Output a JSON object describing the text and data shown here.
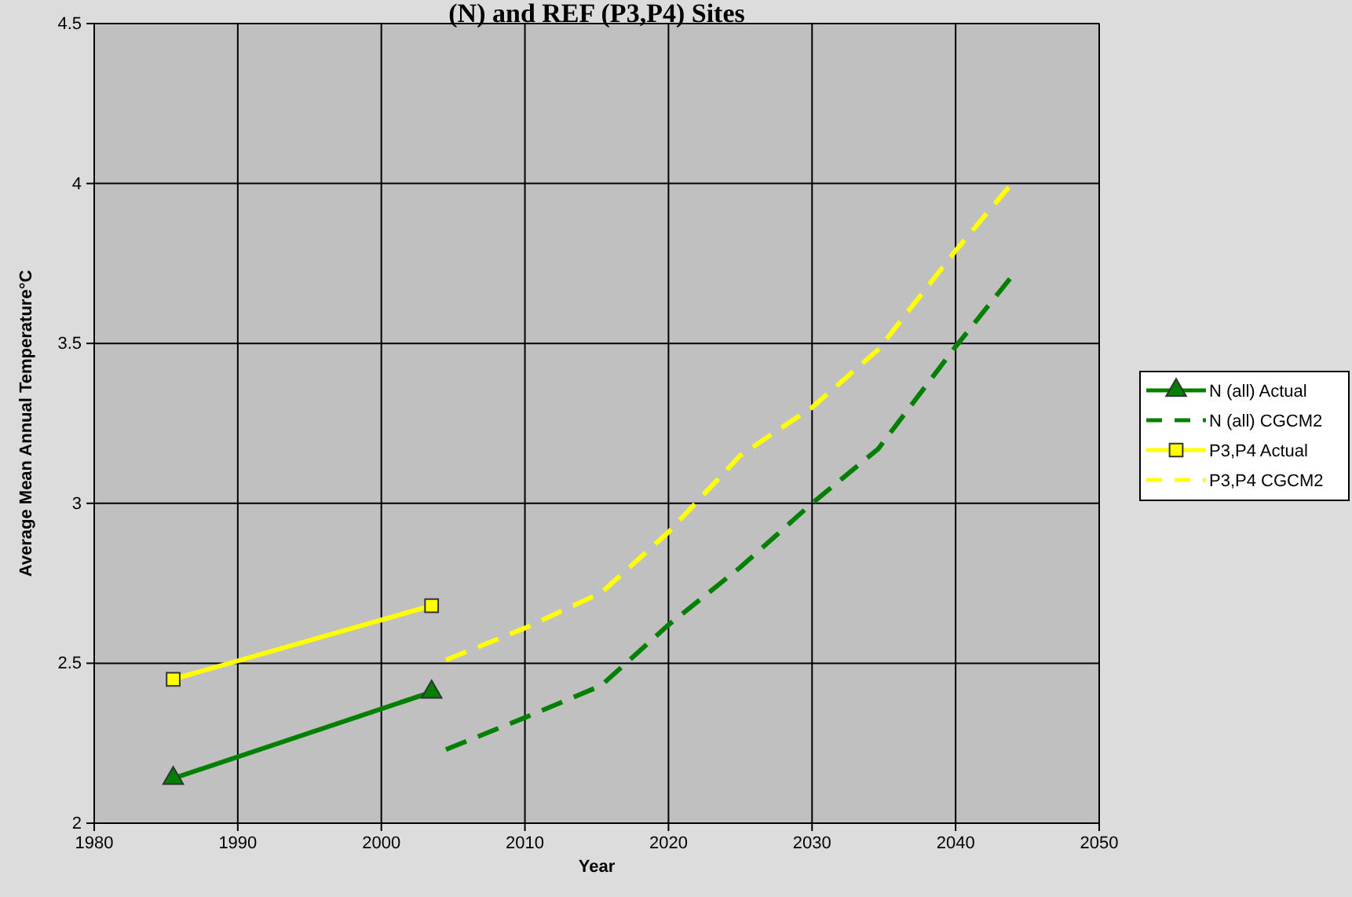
{
  "chart_data": {
    "type": "line",
    "title": "(N) and REF (P3,P4) Sites",
    "xlabel": "Year",
    "ylabel": "Average Mean Annual Temperature°C",
    "xlim": [
      1980,
      2050
    ],
    "xticks": [
      1980,
      1990,
      2000,
      2010,
      2020,
      2030,
      2040,
      2050
    ],
    "ylim": [
      2,
      4.5
    ],
    "yticks": [
      2,
      2.5,
      3,
      3.5,
      4,
      4.5
    ],
    "grid": true,
    "legend": "right",
    "series": [
      {
        "name": "N (all) Actual",
        "color": "#008000",
        "marker": "triangle",
        "line_style": "solid",
        "x": [
          1985.5,
          2003.5
        ],
        "values": [
          2.14,
          2.41
        ]
      },
      {
        "name": "N (all) CGCM2",
        "color": "#008000",
        "marker": "none",
        "line_style": "dashed",
        "x": [
          2004.5,
          2010,
          2015.3,
          2020,
          2025,
          2030,
          2034.6,
          2040,
          2044.1
        ],
        "values": [
          2.23,
          2.33,
          2.43,
          2.62,
          2.8,
          3.0,
          3.17,
          3.49,
          3.72
        ]
      },
      {
        "name": "P3,P4 Actual",
        "color": "#ffff00",
        "marker": "square",
        "line_style": "solid",
        "x": [
          1985.5,
          2003.5
        ],
        "values": [
          2.45,
          2.68
        ]
      },
      {
        "name": "P3,P4 CGCM2",
        "color": "#ffff00",
        "marker": "none",
        "line_style": "dashed",
        "x": [
          2004.5,
          2010,
          2015.3,
          2020,
          2025,
          2030,
          2034.6,
          2040,
          2044.1
        ],
        "values": [
          2.51,
          2.61,
          2.72,
          2.91,
          3.15,
          3.3,
          3.48,
          3.79,
          4.01
        ]
      }
    ]
  }
}
